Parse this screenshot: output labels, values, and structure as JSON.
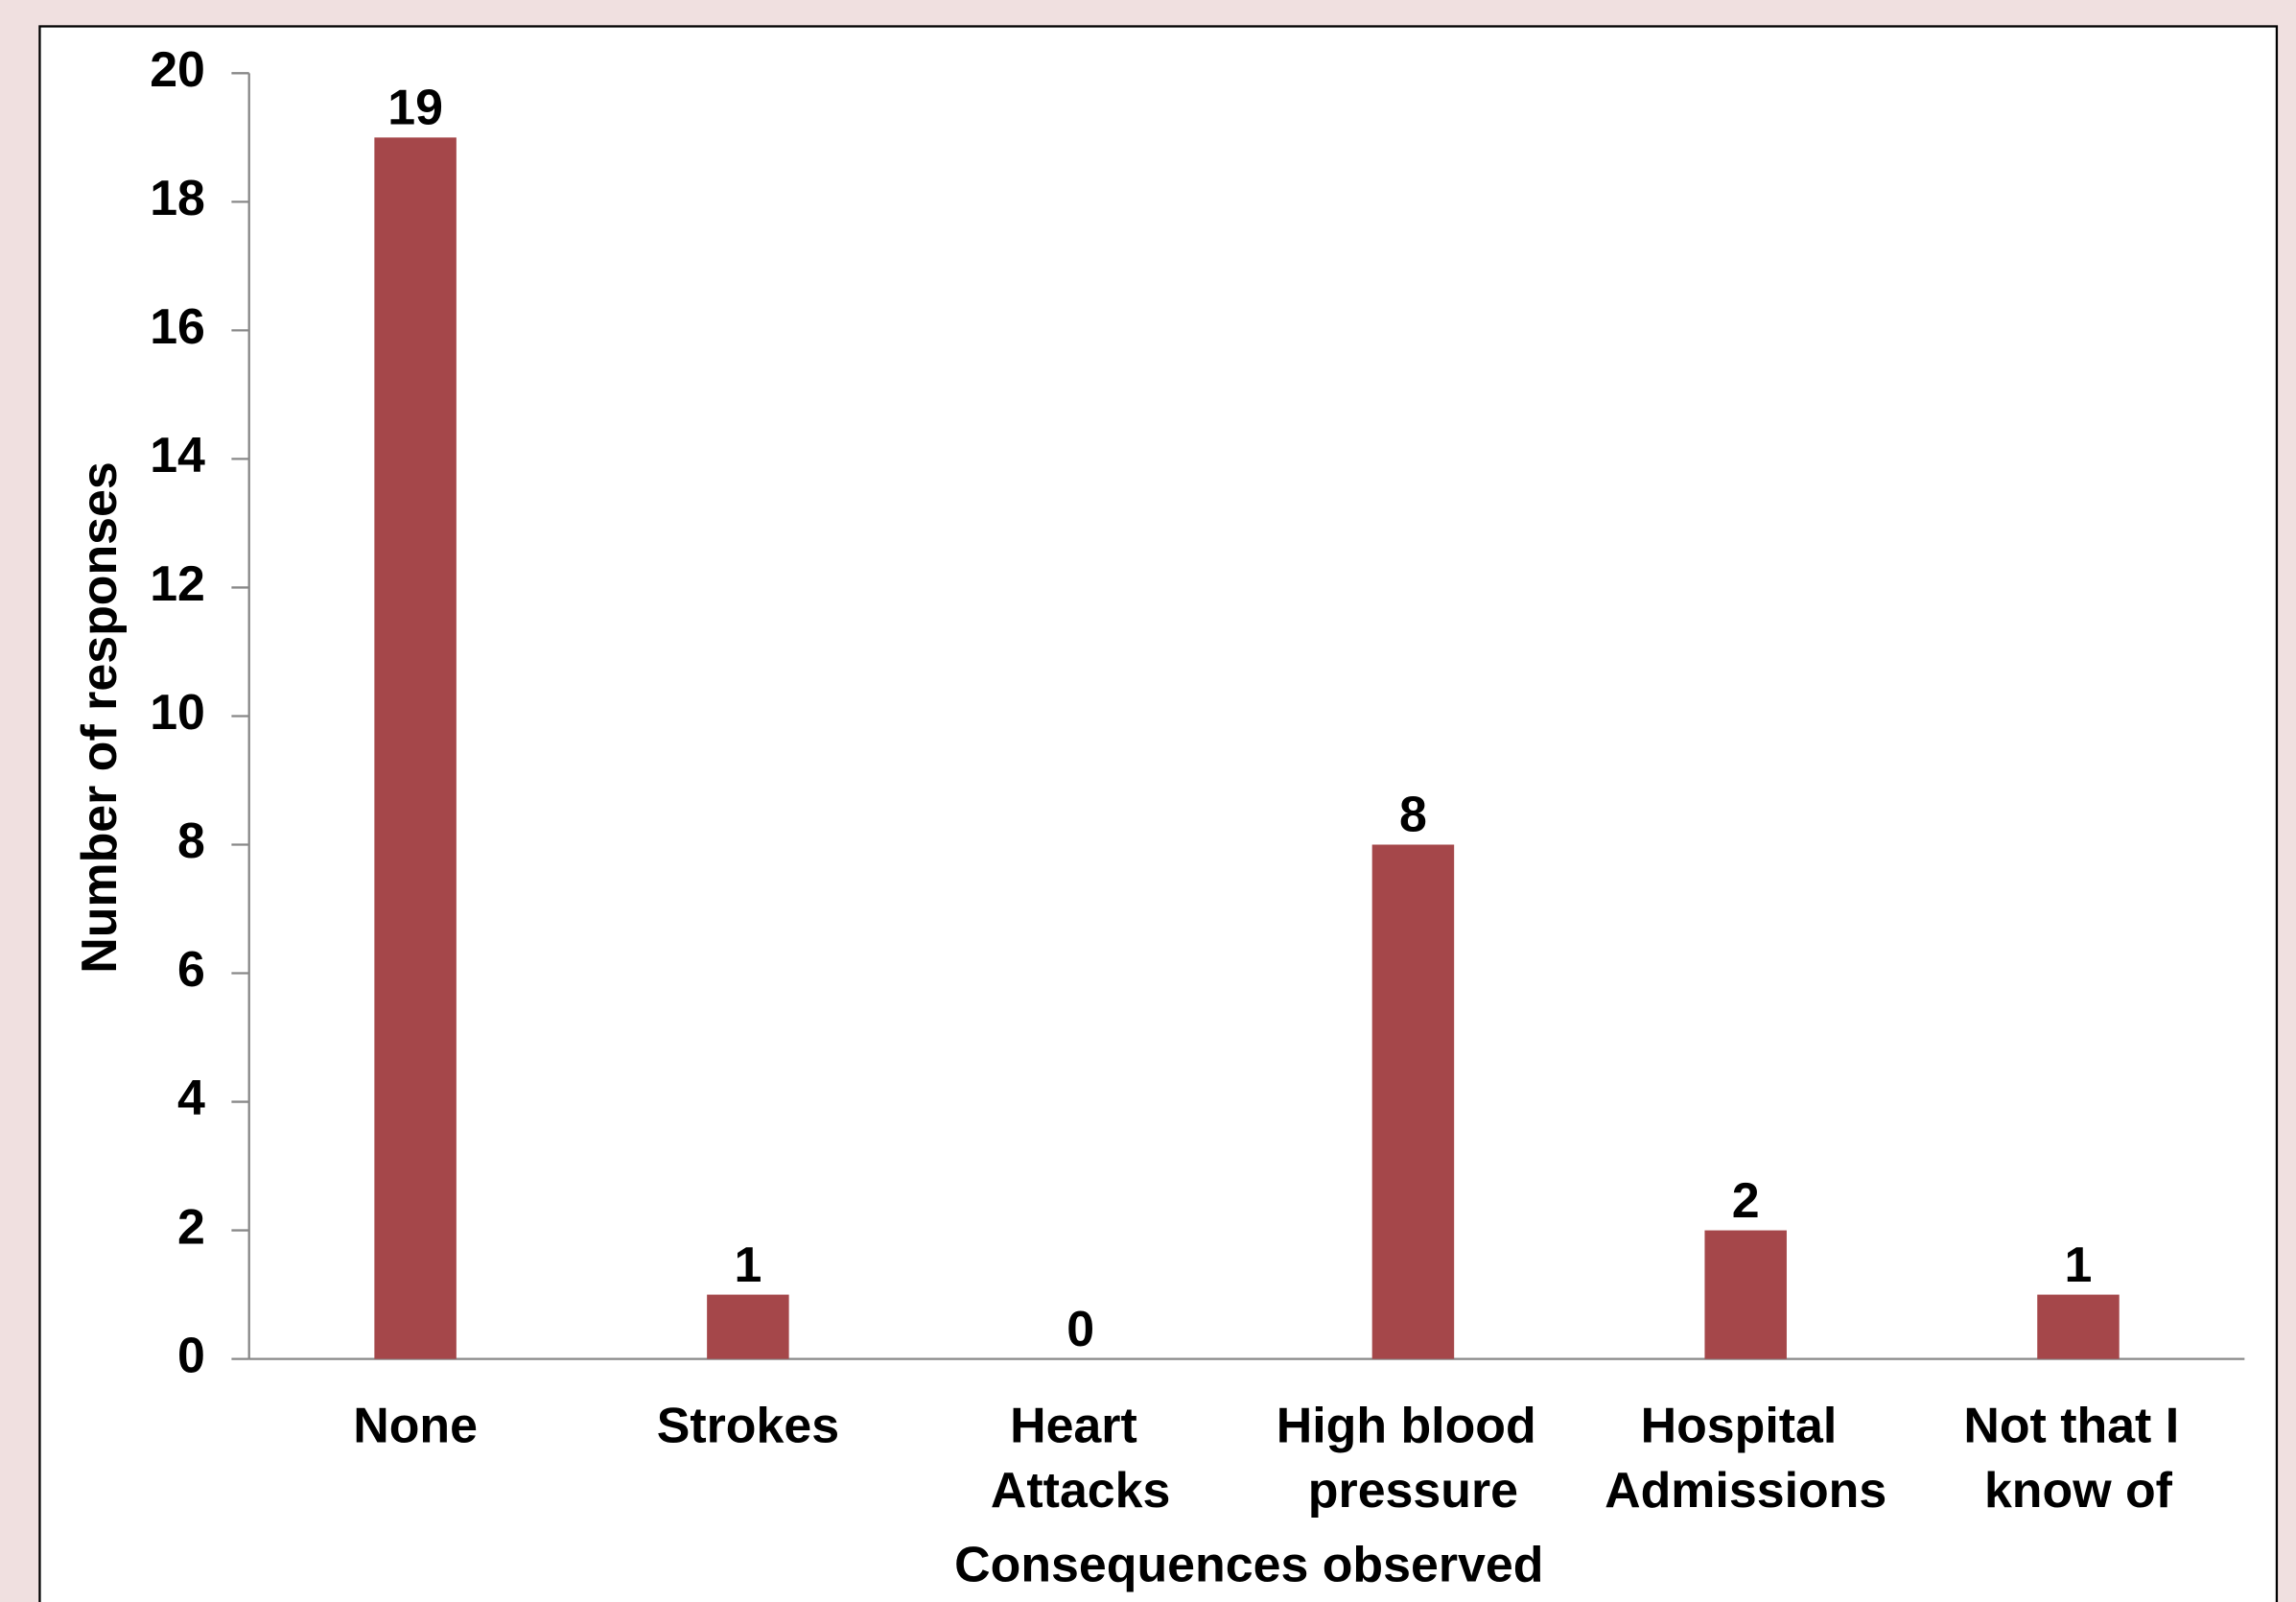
{
  "chart_data": {
    "type": "bar",
    "categories": [
      "None",
      "Strokes",
      "Heart Attacks",
      "High blood pressure",
      "Hospital Admissions",
      "Not that I know of"
    ],
    "values": [
      19,
      1,
      0,
      8,
      2,
      1
    ],
    "color": "#a5474a",
    "xlabel": "Consequences observed",
    "ylabel": "Number of responses",
    "ylim": [
      0,
      20
    ],
    "yticks": [
      0,
      2,
      4,
      6,
      8,
      10,
      12,
      14,
      16,
      18,
      20
    ],
    "grid": false
  }
}
